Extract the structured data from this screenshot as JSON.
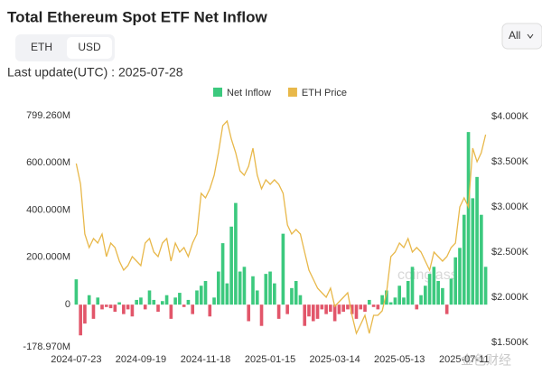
{
  "controls": {
    "toggle": [
      "ETH",
      "USD"
    ],
    "selected_index": 1,
    "range": "All",
    "last_update": "Last update(UTC) : 2025-07-28"
  },
  "chart_data": {
    "type": "combo",
    "title": "Total Ethereum Spot ETF Net Inflow",
    "categories": [
      "2024-07-23",
      null,
      null,
      null,
      null,
      null,
      null,
      null,
      null,
      null,
      null,
      null,
      null,
      null,
      null,
      "2024-09-19",
      null,
      null,
      null,
      null,
      null,
      null,
      null,
      null,
      null,
      null,
      null,
      null,
      null,
      null,
      "2024-11-18",
      null,
      null,
      null,
      null,
      null,
      null,
      null,
      null,
      null,
      null,
      null,
      null,
      null,
      null,
      "2025-01-15",
      null,
      null,
      null,
      null,
      null,
      null,
      null,
      null,
      null,
      null,
      null,
      null,
      null,
      null,
      "2025-03-14",
      null,
      null,
      null,
      null,
      null,
      null,
      null,
      null,
      null,
      null,
      null,
      null,
      null,
      null,
      "2025-05-13",
      null,
      null,
      null,
      null,
      null,
      null,
      null,
      null,
      null,
      null,
      null,
      null,
      null,
      null,
      "2025-07-11",
      null,
      null,
      null,
      null,
      null
    ],
    "series": [
      {
        "name": "Net Inflow",
        "type": "bar",
        "color": "#3cc97e",
        "negative_color": "#e2566a",
        "values": [
          107,
          -130,
          -80,
          40,
          -60,
          30,
          -20,
          -10,
          -15,
          -30,
          10,
          -40,
          -20,
          -50,
          20,
          30,
          -20,
          60,
          20,
          -30,
          15,
          40,
          -60,
          30,
          50,
          -10,
          20,
          -40,
          60,
          80,
          100,
          -50,
          30,
          140,
          260,
          90,
          330,
          430,
          140,
          160,
          -70,
          120,
          60,
          -90,
          130,
          140,
          90,
          -60,
          300,
          -40,
          70,
          100,
          40,
          -90,
          -50,
          -70,
          -60,
          -20,
          -40,
          -30,
          -70,
          -40,
          -30,
          -20,
          -40,
          -60,
          -20,
          -30,
          20,
          -10,
          -20,
          40,
          60,
          10,
          30,
          80,
          30,
          100,
          160,
          -20,
          40,
          80,
          130,
          160,
          100,
          70,
          -40,
          110,
          200,
          240,
          380,
          730,
          450,
          540,
          380,
          160
        ]
      },
      {
        "name": "ETH Price",
        "type": "line",
        "axis": "y2",
        "color": "#e8b84a",
        "values": [
          3480,
          3250,
          2700,
          2550,
          2650,
          2600,
          2700,
          2450,
          2600,
          2550,
          2400,
          2300,
          2350,
          2450,
          2400,
          2350,
          2600,
          2650,
          2500,
          2450,
          2600,
          2650,
          2400,
          2600,
          2500,
          2550,
          2450,
          2600,
          2700,
          3150,
          3100,
          3200,
          3350,
          3600,
          3900,
          3950,
          3750,
          3600,
          3400,
          3350,
          3450,
          3650,
          3350,
          3200,
          3300,
          3250,
          3300,
          3250,
          3150,
          2800,
          2700,
          2750,
          2700,
          2500,
          2300,
          2200,
          2100,
          2050,
          2000,
          2100,
          1900,
          1950,
          2000,
          2050,
          1800,
          1600,
          1700,
          1800,
          1600,
          1800,
          1800,
          1850,
          2050,
          2450,
          2500,
          2600,
          2550,
          2650,
          2500,
          2550,
          2500,
          2400,
          2300,
          2500,
          2450,
          2400,
          2450,
          2550,
          2600,
          3000,
          3100,
          3000,
          3650,
          3500,
          3600,
          3800
        ]
      }
    ],
    "ylim": [
      -178.97,
      799.26
    ],
    "yticks": [
      {
        "value": -178.97,
        "label": "-178.970M"
      },
      0,
      {
        "value": 200,
        "label": "200.000M"
      },
      {
        "value": 400,
        "label": "400.000M"
      },
      {
        "value": 600,
        "label": "600.000M"
      },
      {
        "value": 799.26,
        "label": "799.260M"
      }
    ],
    "y2lim": [
      1450,
      4010
    ],
    "y2ticks": [
      {
        "value": 1500,
        "label": "$1.500K"
      },
      {
        "value": 2000,
        "label": "$2.000K"
      },
      {
        "value": 2500,
        "label": "$2.500K"
      },
      {
        "value": 3000,
        "label": "$3.000K"
      },
      {
        "value": 3500,
        "label": "$3.500K"
      },
      {
        "value": 4000,
        "label": "$4.000K"
      }
    ],
    "watermark": "coinglass",
    "source_mark": "金色财经"
  }
}
